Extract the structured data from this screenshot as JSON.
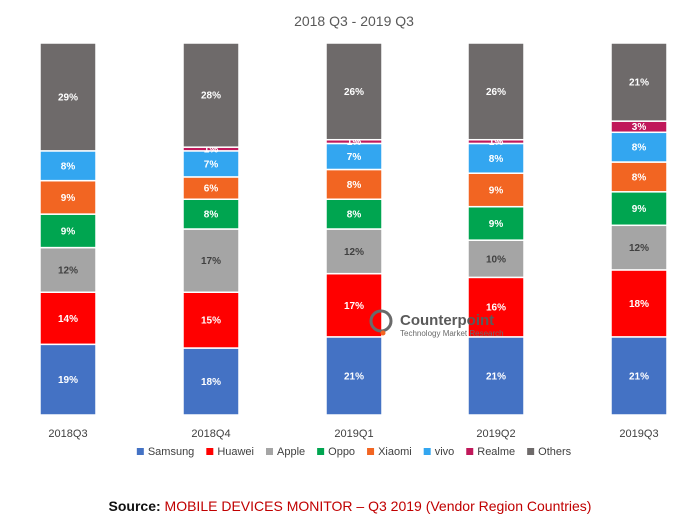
{
  "chart_data": {
    "type": "bar",
    "stacked": true,
    "normalized": true,
    "title": "2018 Q3 - 2019 Q3",
    "categories": [
      "2018Q3",
      "2018Q4",
      "2019Q1",
      "2019Q2",
      "2019Q3"
    ],
    "ylim": [
      0,
      100
    ],
    "grid": false,
    "legend_position": "bottom",
    "series": [
      {
        "name": "Samsung",
        "color": "#4472c4",
        "values": [
          19,
          18,
          21,
          21,
          21
        ],
        "labels": [
          "19%",
          "18%",
          "21%",
          "21%",
          "21%"
        ]
      },
      {
        "name": "Huawei",
        "color": "#ff0000",
        "values": [
          14,
          15,
          17,
          16,
          18
        ],
        "labels": [
          "14%",
          "15%",
          "17%",
          "16%",
          "18%"
        ]
      },
      {
        "name": "Apple",
        "color": "#a5a5a5",
        "values": [
          12,
          17,
          12,
          10,
          12
        ],
        "labels": [
          "12%",
          "17%",
          "12%",
          "10%",
          "12%"
        ]
      },
      {
        "name": "Oppo",
        "color": "#00a550",
        "values": [
          9,
          8,
          8,
          9,
          9
        ],
        "labels": [
          "9%",
          "8%",
          "8%",
          "9%",
          "9%"
        ]
      },
      {
        "name": "Xiaomi",
        "color": "#f26522",
        "values": [
          9,
          6,
          8,
          9,
          8
        ],
        "labels": [
          "9%",
          "6%",
          "8%",
          "9%",
          "8%"
        ]
      },
      {
        "name": "vivo",
        "color": "#33a6f0",
        "values": [
          8,
          7,
          7,
          8,
          8
        ],
        "labels": [
          "8%",
          "7%",
          "7%",
          "8%",
          "8%"
        ]
      },
      {
        "name": "Realme",
        "color": "#c0185a",
        "values": [
          0,
          1,
          1,
          1,
          3
        ],
        "labels": [
          "",
          "1%",
          "1%",
          "1%",
          "3%"
        ]
      },
      {
        "name": "Others",
        "color": "#6e6a6a",
        "values": [
          29,
          28,
          26,
          26,
          21
        ],
        "labels": [
          "29%",
          "28%",
          "26%",
          "26%",
          "21%"
        ]
      }
    ]
  },
  "watermark": {
    "brand": "Counterpoint",
    "tagline": "Technology Market Research"
  },
  "source": {
    "label": "Source:",
    "text": "MOBILE DEVICES MONITOR – Q3 2019 (Vendor Region Countries)"
  }
}
